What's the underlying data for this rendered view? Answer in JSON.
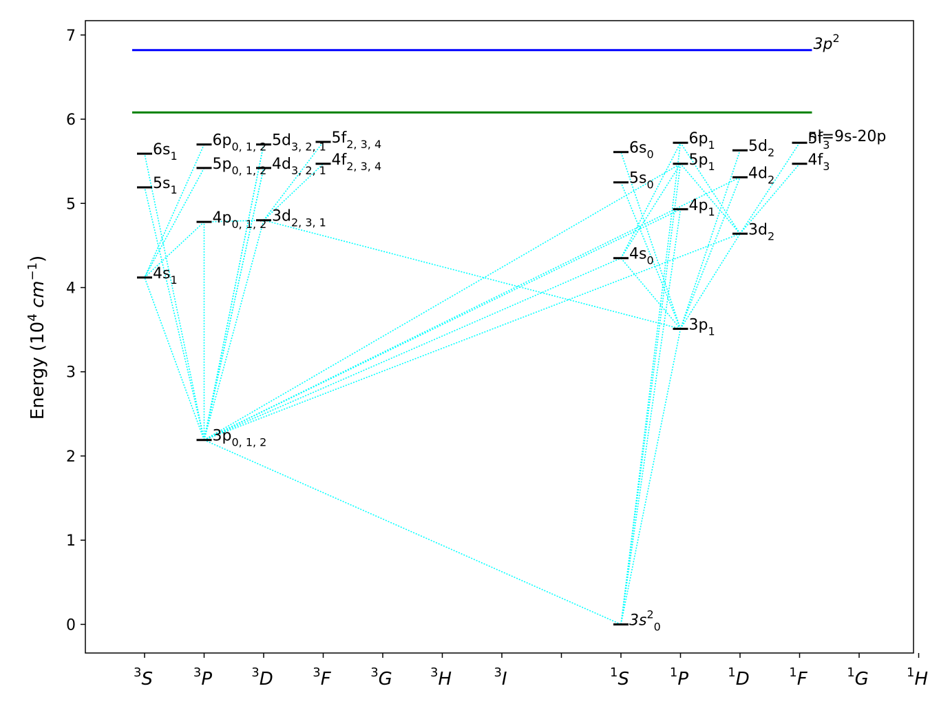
{
  "chart_data": {
    "type": "line",
    "ylabel": "Energy (10",
    "ylabel_sup": "4",
    "ylabel_unit": "cm",
    "ylabel_unit_sup": "−1",
    "ylim": [
      -0.34,
      7.17
    ],
    "yticks": [
      0,
      1,
      2,
      3,
      4,
      5,
      6,
      7
    ],
    "x_categories": [
      "3S",
      "3P",
      "3D",
      "3F",
      "3G",
      "3H",
      "3I",
      "",
      "1S",
      "1P",
      "1D",
      "1F",
      "1G",
      "1H"
    ],
    "x_tick_labels": [
      {
        "sup": "3",
        "base": "S"
      },
      {
        "sup": "3",
        "base": "P"
      },
      {
        "sup": "3",
        "base": "D"
      },
      {
        "sup": "3",
        "base": "F"
      },
      {
        "sup": "3",
        "base": "G"
      },
      {
        "sup": "3",
        "base": "H"
      },
      {
        "sup": "3",
        "base": "I"
      },
      {
        "sup": "",
        "base": ""
      },
      {
        "sup": "1",
        "base": "S"
      },
      {
        "sup": "1",
        "base": "P"
      },
      {
        "sup": "1",
        "base": "D"
      },
      {
        "sup": "1",
        "base": "F"
      },
      {
        "sup": "1",
        "base": "G"
      },
      {
        "sup": "1",
        "base": "H"
      }
    ],
    "ionization_limits": [
      {
        "energy": 6.82,
        "color": "#0000ff",
        "label_main": "3p",
        "label_sup": "2"
      },
      {
        "energy": 6.08,
        "color": "#008000",
        "label_main": "",
        "label_sup": ""
      }
    ],
    "levels": [
      {
        "id": "4s1",
        "x": 0,
        "energy": 4.12,
        "base": "4s",
        "sub": "1"
      },
      {
        "id": "5s1",
        "x": 0,
        "energy": 5.19,
        "base": "5s",
        "sub": "1"
      },
      {
        "id": "6s1",
        "x": 0,
        "energy": 5.59,
        "base": "6s",
        "sub": "1"
      },
      {
        "id": "3p012",
        "x": 1,
        "energy": 2.19,
        "base": "3p",
        "sub": "0, 1, 2"
      },
      {
        "id": "4p012",
        "x": 1,
        "energy": 4.78,
        "base": "4p",
        "sub": "0, 1, 2"
      },
      {
        "id": "5p012",
        "x": 1,
        "energy": 5.42,
        "base": "5p",
        "sub": "0, 1, 2"
      },
      {
        "id": "6p012",
        "x": 1,
        "energy": 5.7,
        "base": "6p",
        "sub": "0, 1, 2"
      },
      {
        "id": "3d231",
        "x": 2,
        "energy": 4.8,
        "base": "3d",
        "sub": "2, 3, 1"
      },
      {
        "id": "4d321",
        "x": 2,
        "energy": 5.42,
        "base": "4d",
        "sub": "3, 2, 1"
      },
      {
        "id": "5d321",
        "x": 2,
        "energy": 5.7,
        "base": "5d",
        "sub": "3, 2, 1"
      },
      {
        "id": "4f234",
        "x": 3,
        "energy": 5.47,
        "base": "4f",
        "sub": "2, 3, 4"
      },
      {
        "id": "5f234",
        "x": 3,
        "energy": 5.73,
        "base": "5f",
        "sub": "2, 3, 4"
      },
      {
        "id": "3s2_0",
        "x": 8,
        "energy": 0.0,
        "base": "3s",
        "sup": "2",
        "sub": "0",
        "italic": true
      },
      {
        "id": "4s0",
        "x": 8,
        "energy": 4.35,
        "base": "4s",
        "sub": "0"
      },
      {
        "id": "5s0",
        "x": 8,
        "energy": 5.25,
        "base": "5s",
        "sub": "0"
      },
      {
        "id": "6s0",
        "x": 8,
        "energy": 5.61,
        "base": "6s",
        "sub": "0"
      },
      {
        "id": "3p1",
        "x": 9,
        "energy": 3.51,
        "base": "3p",
        "sub": "1"
      },
      {
        "id": "4p1",
        "x": 9,
        "energy": 4.93,
        "base": "4p",
        "sub": "1"
      },
      {
        "id": "5p1",
        "x": 9,
        "energy": 5.47,
        "base": "5p",
        "sub": "1"
      },
      {
        "id": "6p1",
        "x": 9,
        "energy": 5.72,
        "base": "6p",
        "sub": "1"
      },
      {
        "id": "3d2",
        "x": 10,
        "energy": 4.64,
        "base": "3d",
        "sub": "2"
      },
      {
        "id": "4d2",
        "x": 10,
        "energy": 5.31,
        "base": "4d",
        "sub": "2"
      },
      {
        "id": "5d2",
        "x": 10,
        "energy": 5.63,
        "base": "5d",
        "sub": "2"
      },
      {
        "id": "4f3",
        "x": 11,
        "energy": 5.47,
        "base": "4f",
        "sub": "3"
      },
      {
        "id": "5f3",
        "x": 11,
        "energy": 5.72,
        "base": "5f",
        "sub": "3"
      }
    ],
    "annotations": [
      {
        "text": "nl=9s-20p",
        "x": 11,
        "energy": 5.72
      }
    ],
    "transitions": [
      [
        "3p012",
        "4s1"
      ],
      [
        "3p012",
        "5s1"
      ],
      [
        "3p012",
        "6s1"
      ],
      [
        "4p012",
        "4s1"
      ],
      [
        "5p012",
        "4s1"
      ],
      [
        "6p012",
        "4s1"
      ],
      [
        "3p012",
        "3d231"
      ],
      [
        "3p012",
        "4d321"
      ],
      [
        "3p012",
        "5d321"
      ],
      [
        "3p012",
        "4d321"
      ],
      [
        "3p012",
        "5d321"
      ],
      [
        "4p012",
        "3d231"
      ],
      [
        "3d231",
        "4f234"
      ],
      [
        "3d231",
        "5f234"
      ],
      [
        "3p012",
        "4p012"
      ],
      [
        "3p012",
        "4s0"
      ],
      [
        "3p012",
        "3d2"
      ],
      [
        "3p012",
        "4p1"
      ],
      [
        "3p012",
        "4d2"
      ],
      [
        "3p012",
        "5p1"
      ],
      [
        "3d231",
        "3p1"
      ],
      [
        "3p012",
        "3s2_0"
      ],
      [
        "3s2_0",
        "3p1"
      ],
      [
        "3s2_0",
        "4p1"
      ],
      [
        "3s2_0",
        "5p1"
      ],
      [
        "3s2_0",
        "6p1"
      ],
      [
        "3p1",
        "4s0"
      ],
      [
        "3p1",
        "5s0"
      ],
      [
        "3p1",
        "6s0"
      ],
      [
        "3p1",
        "3d2"
      ],
      [
        "3p1",
        "4d2"
      ],
      [
        "3p1",
        "5d2"
      ],
      [
        "4s0",
        "5p1"
      ],
      [
        "4s0",
        "6p1"
      ],
      [
        "3d2",
        "5p1"
      ],
      [
        "3d2",
        "6p1"
      ],
      [
        "3d2",
        "4f3"
      ],
      [
        "3d2",
        "5f3"
      ]
    ],
    "colors": {
      "levels": "#000000",
      "transitions": "#00ffff",
      "axes": "#000000"
    }
  }
}
